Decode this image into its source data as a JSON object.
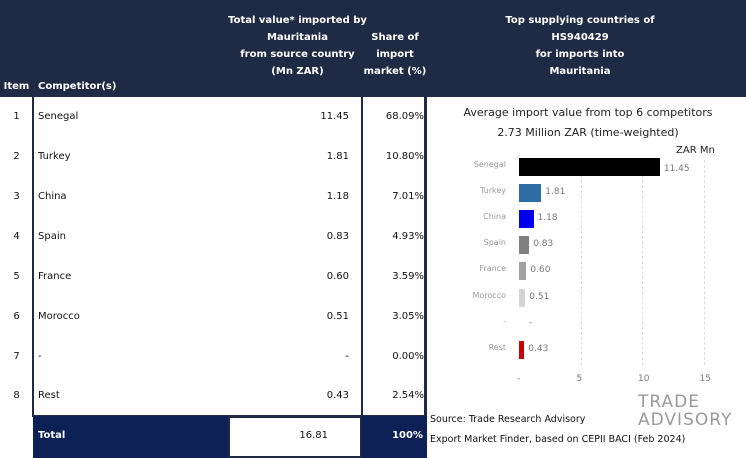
{
  "table": {
    "headers": {
      "item": "Item",
      "competitor": "Competitor(s)",
      "value_lines": [
        "Total value* imported by",
        "Mauritania",
        "from source country",
        "(Mn ZAR)"
      ],
      "share_lines": [
        "Share of",
        "import",
        "market (%)"
      ],
      "chart_lines": [
        "Top supplying countries of",
        "HS940429",
        "for imports into",
        "Mauritania"
      ]
    },
    "rows": [
      {
        "item": "1",
        "name": "Senegal",
        "value": "11.45",
        "share": "68.09%"
      },
      {
        "item": "2",
        "name": "Turkey",
        "value": "1.81",
        "share": "10.80%"
      },
      {
        "item": "3",
        "name": "China",
        "value": "1.18",
        "share": "7.01%"
      },
      {
        "item": "4",
        "name": "Spain",
        "value": "0.83",
        "share": "4.93%"
      },
      {
        "item": "5",
        "name": "France",
        "value": "0.60",
        "share": "3.59%"
      },
      {
        "item": "6",
        "name": "Morocco",
        "value": "0.51",
        "share": "3.05%"
      },
      {
        "item": "7",
        "name": "-",
        "value": "-",
        "share": "0.00%"
      },
      {
        "item": "8",
        "name": "Rest",
        "value": "0.43",
        "share": "2.54%"
      }
    ],
    "total": {
      "label": "Total",
      "value": "16.81",
      "share": "100%"
    }
  },
  "chart_data": {
    "type": "bar",
    "orientation": "horizontal",
    "title": "Average import value from top 6 competitors",
    "subtitle": "2.73 Million ZAR (time-weighted)",
    "unit_label": "ZAR Mn",
    "categories": [
      "Senegal",
      "Turkey",
      "China",
      "Spain",
      "France",
      "Morocco",
      "-",
      "Rest"
    ],
    "values": [
      11.45,
      1.81,
      1.18,
      0.83,
      0.6,
      0.51,
      null,
      0.43
    ],
    "value_labels": [
      "11.45",
      "1.81",
      "1.18",
      "0.83",
      "0.60",
      "0.51",
      "-",
      "0.43"
    ],
    "colors": [
      "#000000",
      "#2e6da4",
      "#0000ee",
      "#808080",
      "#a0a0a0",
      "#d3d3d3",
      "#ffffff",
      "#cc0000"
    ],
    "xlim": [
      0,
      15
    ],
    "xticks": [
      "-",
      "5",
      "10",
      "15"
    ],
    "grid": true
  },
  "source": {
    "line1": "Source: Trade Research Advisory",
    "line2": "Export Market Finder, based on CEPII BACI (Feb 2024)"
  },
  "logo": {
    "line1": "TRADE",
    "line2": "ADVISORY"
  },
  "colors": {
    "header_bg": "#1f2a44",
    "header_text": "#ffffff"
  }
}
